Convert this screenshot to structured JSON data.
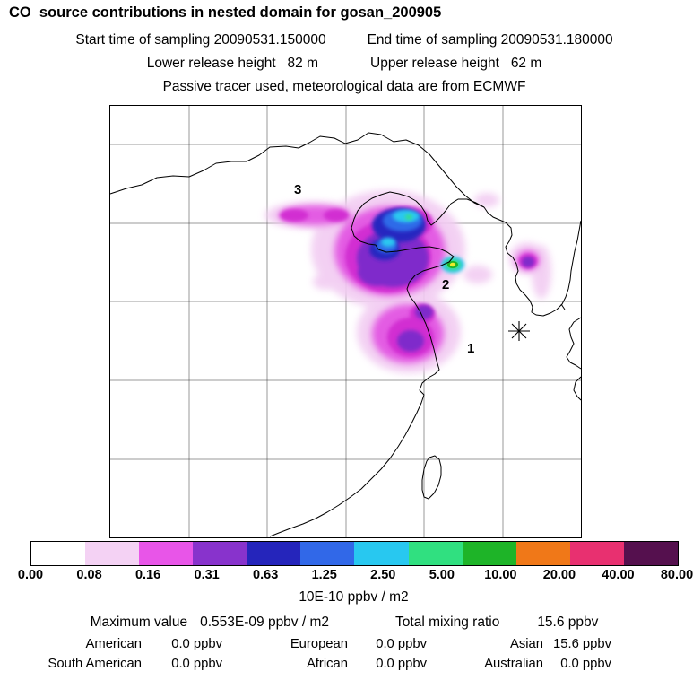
{
  "header": {
    "title": "CO  source contributions in nested domain for gosan_200905",
    "start_time": "Start time of sampling 20090531.150000",
    "end_time": "End time of sampling 20090531.180000",
    "lower_release": "Lower release height   82 m",
    "upper_release": "Upper release height   62 m",
    "tracer_line": "Passive tracer used, meteorological data are from ECMWF"
  },
  "map": {
    "point_labels": [
      "1",
      "2",
      "3"
    ],
    "receptor_marker": "asterisk"
  },
  "colorbar": {
    "tick_labels": [
      "0.00",
      "0.08",
      "0.16",
      "0.31",
      "0.63",
      "1.25",
      "2.50",
      "5.00",
      "10.00",
      "20.00",
      "40.00",
      "80.00"
    ],
    "colors": [
      "#FFFFFF",
      "#F4D2F4",
      "#E855E8",
      "#8833CC",
      "#2525BB",
      "#3168E8",
      "#28C8F0",
      "#30E080",
      "#1EB428",
      "#F07818",
      "#E83070",
      "#55104E"
    ],
    "units_label": "10E-10 ppbv / m2"
  },
  "stats": {
    "max_label": "Maximum value",
    "max_value": "0.553E-09 ppbv / m2",
    "total_label": "Total mixing ratio",
    "total_value": "15.6 ppbv",
    "contributions": [
      {
        "region": "American",
        "value": "0.0 ppbv"
      },
      {
        "region": "European",
        "value": "0.0 ppbv"
      },
      {
        "region": "Asian",
        "value": "15.6 ppbv"
      },
      {
        "region": "South American",
        "value": "0.0 ppbv"
      },
      {
        "region": "African",
        "value": "0.0 ppbv"
      },
      {
        "region": "Australian",
        "value": "0.0 ppbv"
      }
    ]
  },
  "chart_data": {
    "type": "heatmap",
    "title": "CO  source contributions in nested domain for gosan_200905",
    "subtitle": "Passive tracer used, meteorological data are from ECMWF",
    "units": "10E-10 ppbv / m2",
    "color_scale_levels": [
      0.0,
      0.08,
      0.16,
      0.31,
      0.63,
      1.25,
      2.5,
      5.0,
      10.0,
      20.0,
      40.0,
      80.0
    ],
    "sampling": {
      "start": "20090531.150000",
      "end": "20090531.180000",
      "lower_release_height_m": 82,
      "upper_release_height_m": 62
    },
    "max_value": "0.553E-09 ppbv / m2",
    "total_mixing_ratio_ppbv": 15.6,
    "region_contributions_ppbv": {
      "American": 0.0,
      "European": 0.0,
      "Asian": 15.6,
      "South American": 0.0,
      "African": 0.0,
      "Australian": 0.0
    },
    "map_point_labels": [
      "1",
      "2",
      "3"
    ],
    "receptor": "marked with asterisk on map",
    "legend_position": "bottom",
    "grid": "on"
  }
}
